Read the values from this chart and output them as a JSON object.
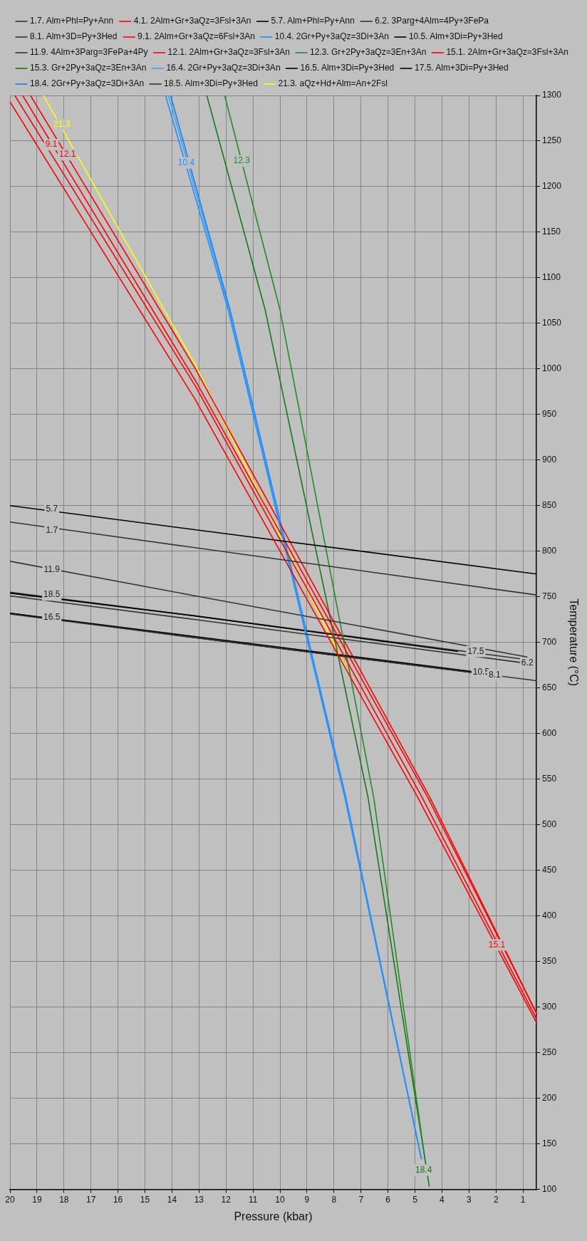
{
  "chart_data": {
    "type": "line",
    "xlabel": "Pressure (kbar)",
    "ylabel": "Temperature (°C)",
    "xlim": [
      20,
      0.5
    ],
    "ylim": [
      100,
      1300
    ],
    "xticks": [
      20,
      19,
      18,
      17,
      16,
      15,
      14,
      13,
      12,
      11,
      10,
      9,
      8,
      7,
      6,
      5,
      4,
      3,
      2,
      1
    ],
    "yticks": [
      100,
      150,
      200,
      250,
      300,
      350,
      400,
      450,
      500,
      550,
      600,
      650,
      700,
      750,
      800,
      850,
      900,
      950,
      1000,
      1050,
      1100,
      1150,
      1200,
      1250,
      1300
    ],
    "grid": true,
    "legend": "top",
    "marker": "none",
    "line_style": "solid",
    "series": [
      {
        "name": "1.7. Alm+Phl=Py+Ann",
        "color": "#333333",
        "x": [
          20,
          0.5
        ],
        "values": [
          832,
          752
        ]
      },
      {
        "name": "4.1. 2Alm+Gr+3aQz=3Fsl+3An",
        "color": "#ff0000",
        "x": [
          0.5,
          4.9,
          13.13,
          20
        ],
        "values": [
          283,
          530,
          966,
          1293
        ]
      },
      {
        "name": "5.7. Alm+Phl=Py+Ann",
        "color": "#000000",
        "x": [
          20,
          0.5
        ],
        "values": [
          850,
          775
        ]
      },
      {
        "name": "6.2. 3Parg+4Alm=4Py+3FePa",
        "color": "#333333",
        "x": [
          20,
          13.13,
          0.84
        ],
        "values": [
          751,
          725,
          677
        ]
      },
      {
        "name": "8.1. Alm+3D=Py+3Hed",
        "color": "#333333",
        "x": [
          20,
          0.5
        ],
        "values": [
          731,
          658
        ]
      },
      {
        "name": "9.1. 2Alm+Gr+3aQz=6Fsl+3An",
        "color": "#ff0000",
        "x": [
          0.5,
          4.74,
          13.13,
          19.82
        ],
        "values": [
          287,
          530,
          981,
          1300
        ]
      },
      {
        "name": "10.4. 2Gr+Py+3aQz=3Di+3An",
        "color": "#1e90ff",
        "x": [
          4.76,
          7.6,
          11.92,
          14.24
        ],
        "values": [
          133,
          530,
          1065,
          1300
        ]
      },
      {
        "name": "10.5. Alm+3Di=Py+3Hed",
        "color": "#000000",
        "x": [
          20,
          2.9
        ],
        "values": [
          732,
          668
        ]
      },
      {
        "name": "11.9. 4Alm+3Parg=3FePa+4Py",
        "color": "#333333",
        "x": [
          20,
          13.13,
          0.84
        ],
        "values": [
          789,
          751,
          684
        ]
      },
      {
        "name": "12.1. 2Alm+Gr+3aQz=3Fsl+3An",
        "color": "#ff0000",
        "x": [
          0.5,
          4.53,
          13.13,
          19.53
        ],
        "values": [
          293,
          530,
          987,
          1300
        ]
      },
      {
        "name": "12.3. Gr+2Py+3aQz=3En+3An",
        "color": "#1f8f1f",
        "x": [
          4.63,
          6.53,
          10.0,
          12.05
        ],
        "values": [
          133,
          530,
          1065,
          1300
        ]
      },
      {
        "name": "15.1. 2Alm+Gr+3aQz=3Fsl+3An",
        "color": "#ff0000",
        "x": [
          0.5,
          4.45,
          13.13,
          19.24
        ],
        "values": [
          293,
          530,
          1000,
          1300
        ]
      },
      {
        "name": "15.3. Gr+2Py+3aQz=3En+3An",
        "color": "#157a15",
        "x": [
          4.47,
          4.63,
          6.74,
          10.55,
          12.71
        ],
        "values": [
          103,
          133,
          530,
          1065,
          1300
        ]
      },
      {
        "name": "16.4. 2Gr+Py+3aQz=3Di+3An",
        "color": "#3aa0ff",
        "x": [
          4.76,
          7.58,
          11.88,
          14.13
        ],
        "values": [
          133,
          530,
          1065,
          1300
        ]
      },
      {
        "name": "16.5. Alm+3Di=Py+3Hed",
        "color": "#000000",
        "x": [
          20,
          13.13,
          2.9
        ],
        "values": [
          732,
          705,
          667
        ]
      },
      {
        "name": "17.5. Alm+3Di=Py+3Hed",
        "color": "#000000",
        "x": [
          20,
          13.13,
          3.4
        ],
        "values": [
          754,
          729,
          690
        ]
      },
      {
        "name": "18.4. 2Gr+Py+3aQz=3Di+3An",
        "color": "#1a80e6",
        "x": [
          4.76,
          7.56,
          11.85,
          14.05
        ],
        "values": [
          133,
          530,
          1065,
          1300
        ]
      },
      {
        "name": "18.5. Alm+3Di=Py+3Hed",
        "color": "#333333",
        "x": [
          20,
          13.13,
          0.84
        ],
        "values": [
          755,
          729,
          681
        ]
      },
      {
        "name": "21.3. aQz+Hd+Alm=An+2Fsl",
        "color": "#ffff00",
        "x": [
          7.47,
          13.13,
          18.76
        ],
        "values": [
          667,
          1004,
          1300
        ]
      }
    ],
    "annotations": [
      {
        "text": "1.7",
        "x": 18.45,
        "y": 823
      },
      {
        "text": "5.7",
        "x": 18.45,
        "y": 846
      },
      {
        "text": "11.9",
        "x": 18.45,
        "y": 780
      },
      {
        "text": "18.5",
        "x": 18.45,
        "y": 752
      },
      {
        "text": "16.5",
        "x": 18.45,
        "y": 727
      },
      {
        "text": "17.5",
        "x": 2.75,
        "y": 690
      },
      {
        "text": "10.5",
        "x": 2.55,
        "y": 667
      },
      {
        "text": "8.1",
        "x": 2.05,
        "y": 664
      },
      {
        "text": "6.2",
        "x": 0.84,
        "y": 677
      },
      {
        "text": "15.1",
        "x": 1.97,
        "y": 368
      },
      {
        "text": "9.1",
        "x": 18.47,
        "y": 1246
      },
      {
        "text": "12.1",
        "x": 17.87,
        "y": 1235
      },
      {
        "text": "21.3",
        "x": 18.08,
        "y": 1268
      },
      {
        "text": "10.4",
        "x": 13.47,
        "y": 1226
      },
      {
        "text": "12.3",
        "x": 11.42,
        "y": 1228
      },
      {
        "text": "18.4",
        "x": 4.68,
        "y": 121
      }
    ]
  }
}
